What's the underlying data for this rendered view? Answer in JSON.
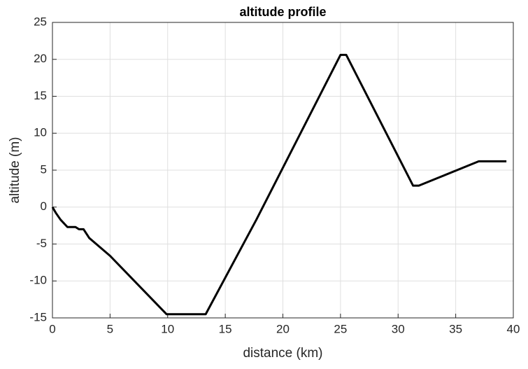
{
  "chart_data": {
    "type": "line",
    "title": "altitude profile",
    "x_label": "distance (km)",
    "y_label": "altitude (m)",
    "x": [
      0,
      0.3,
      0.7,
      1.3,
      2.0,
      2.3,
      2.7,
      3.2,
      5.0,
      9.9,
      13.3,
      17.7,
      25.0,
      25.5,
      31.3,
      31.8,
      37.0,
      39.4
    ],
    "values": [
      0,
      -0.8,
      -1.7,
      -2.7,
      -2.7,
      -3.0,
      -3.0,
      -4.2,
      -6.6,
      -14.5,
      -14.5,
      -1.7,
      20.6,
      20.6,
      2.9,
      2.9,
      6.2,
      6.2
    ],
    "color": "#000000",
    "xlim": [
      0,
      40
    ],
    "xticks": [
      0,
      5,
      10,
      15,
      20,
      25,
      30,
      35,
      40
    ],
    "ylim": [
      -15,
      25
    ],
    "yticks": [
      -15,
      -10,
      -5,
      0,
      5,
      10,
      15,
      20,
      25
    ],
    "grid": true
  }
}
